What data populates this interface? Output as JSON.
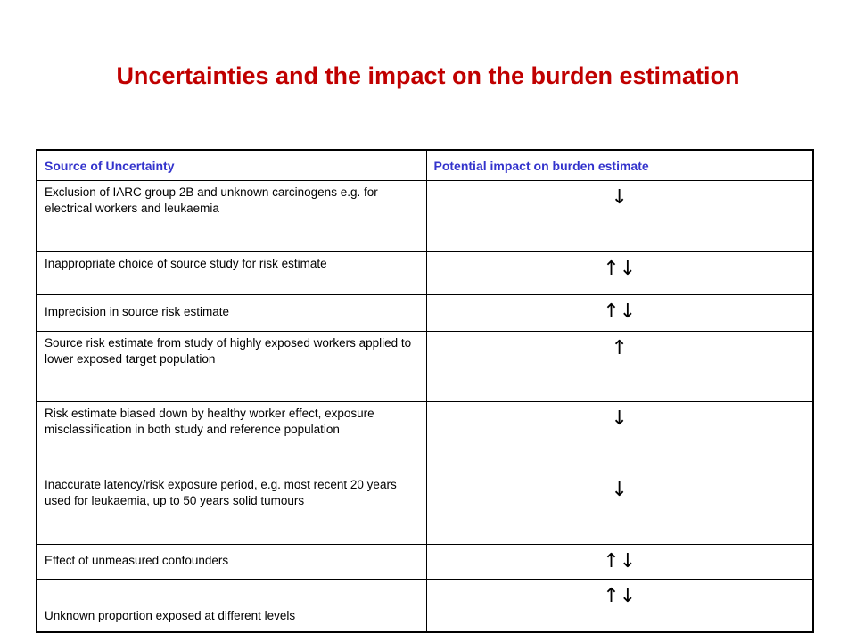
{
  "title": "Uncertainties and the impact on the burden estimation",
  "colors": {
    "title": "#c00000",
    "header_text": "#3333cc",
    "border": "#000000"
  },
  "table": {
    "headers": [
      "Source of Uncertainty",
      "Potential impact on burden estimate"
    ],
    "rows": [
      {
        "source": "Exclusion of IARC group 2B and unknown carcinogens e.g. for electrical workers and leukaemia",
        "impact": "↓"
      },
      {
        "source": "Inappropriate choice of source study for risk estimate",
        "impact": "↑↓"
      },
      {
        "source": "Imprecision in source risk estimate",
        "impact": "↑↓"
      },
      {
        "source": "Source risk estimate from study of highly exposed workers applied to lower exposed target population",
        "impact": "↑"
      },
      {
        "source": "Risk estimate biased down by healthy worker effect, exposure misclassification in both study and reference population",
        "impact": "↓"
      },
      {
        "source": "Inaccurate latency/risk exposure period, e.g. most recent 20 years used for leukaemia, up to 50 years solid tumours",
        "impact": "↓"
      },
      {
        "source": "Effect of unmeasured confounders",
        "impact": "↑↓"
      },
      {
        "source": "Unknown proportion exposed at different levels",
        "impact": "↑↓"
      }
    ]
  }
}
